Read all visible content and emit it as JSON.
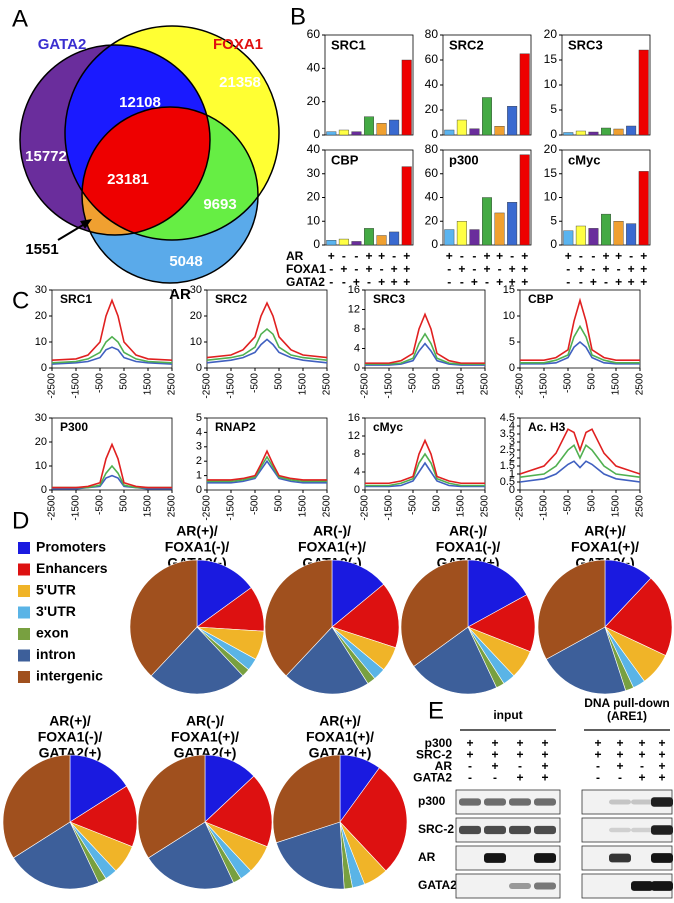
{
  "panel_a": {
    "letter": "A",
    "set_labels": [
      "GATA2",
      "FOXA1",
      "AR"
    ],
    "set_label_colors": [
      "#3a2fd0",
      "#e01010",
      "#000000"
    ],
    "regions": [
      {
        "count": 15772,
        "color": "#6a2d9c"
      },
      {
        "count": 21358,
        "color": "#ffff33"
      },
      {
        "count": 5048,
        "color": "#5aaaea"
      },
      {
        "count": 12108,
        "color": "#1a1aff"
      },
      {
        "count": 9693,
        "color": "#66ee44"
      },
      {
        "count": 23181,
        "color": "#ee0000"
      },
      {
        "count": 1551,
        "color": "#f0a030"
      }
    ]
  },
  "panel_b": {
    "letter": "B",
    "bar_colors": [
      "#5ab4f0",
      "#ffff44",
      "#6a2d9c",
      "#44aa44",
      "#f0a030",
      "#3a6ad0",
      "#ee0000"
    ],
    "charts": [
      {
        "title": "SRC1",
        "ylim": [
          0,
          60
        ],
        "yticks": [
          0,
          20,
          40,
          60
        ],
        "values": [
          2,
          3,
          2,
          11,
          7,
          9,
          45
        ]
      },
      {
        "title": "SRC2",
        "ylim": [
          0,
          80
        ],
        "yticks": [
          0,
          20,
          40,
          60,
          80
        ],
        "values": [
          4,
          12,
          5,
          30,
          7,
          23,
          65
        ]
      },
      {
        "title": "SRC3",
        "ylim": [
          0,
          20
        ],
        "yticks": [
          0,
          5,
          10,
          15,
          20
        ],
        "values": [
          0.5,
          0.8,
          0.6,
          1.4,
          1.2,
          1.8,
          17
        ]
      },
      {
        "title": "CBP",
        "ylim": [
          0,
          40
        ],
        "yticks": [
          0,
          10,
          20,
          30,
          40
        ],
        "values": [
          2,
          2.5,
          1.5,
          7,
          4,
          5.5,
          33
        ]
      },
      {
        "title": "p300",
        "ylim": [
          0,
          80
        ],
        "yticks": [
          0,
          20,
          40,
          60,
          80
        ],
        "values": [
          13,
          20,
          13,
          40,
          27,
          36,
          76
        ]
      },
      {
        "title": "cMyc",
        "ylim": [
          0,
          20
        ],
        "yticks": [
          0,
          5,
          10,
          15,
          20
        ],
        "values": [
          3,
          4,
          3.5,
          6.5,
          5,
          4.5,
          15.5
        ]
      }
    ],
    "conditions": [
      {
        "name": "AR",
        "signs": [
          "+",
          "-",
          "-",
          "+",
          "+",
          "-",
          "+"
        ]
      },
      {
        "name": "FOXA1",
        "signs": [
          "-",
          "+",
          "-",
          "+",
          "-",
          "+",
          "+"
        ]
      },
      {
        "name": "GATA2",
        "signs": [
          "-",
          "-",
          "+",
          "-",
          "+",
          "+",
          "+"
        ]
      }
    ]
  },
  "panel_c": {
    "letter": "C",
    "x": [
      -2500,
      -1500,
      -1000,
      -500,
      -250,
      0,
      250,
      500,
      1000,
      1500,
      2500
    ],
    "xlim": [
      -2500,
      2500
    ],
    "xticks": [
      -2500,
      -1500,
      -500,
      500,
      1500,
      2500
    ],
    "charts": [
      {
        "title": "SRC1",
        "ylim": [
          0,
          30
        ],
        "yticks": [
          0,
          10,
          20,
          30
        ],
        "series": [
          {
            "color": "#e02020",
            "values": [
              3,
              3.5,
              5,
              10,
              20,
              26,
              20,
              10,
              5,
              3.5,
              3
            ]
          },
          {
            "color": "#50b050",
            "values": [
              2,
              2.5,
              3.5,
              6,
              10,
              12,
              10,
              6,
              3.5,
              2.5,
              2
            ]
          },
          {
            "color": "#4060c0",
            "values": [
              1.5,
              2,
              2.5,
              4,
              7,
              8,
              7,
              4,
              2.5,
              2,
              1.5
            ]
          }
        ]
      },
      {
        "title": "SRC2",
        "ylim": [
          0,
          30
        ],
        "yticks": [
          0,
          10,
          20,
          30
        ],
        "series": [
          {
            "color": "#e02020",
            "values": [
              4,
              5,
              7,
              12,
              20,
              25,
              20,
              12,
              7,
              5,
              4
            ]
          },
          {
            "color": "#50b050",
            "values": [
              3,
              4,
              5,
              8,
              13,
              15,
              13,
              8,
              5,
              4,
              3
            ]
          },
          {
            "color": "#4060c0",
            "values": [
              2,
              3,
              4,
              6,
              9,
              11,
              9,
              6,
              4,
              3,
              2
            ]
          }
        ]
      },
      {
        "title": "SRC3",
        "ylim": [
          0,
          16
        ],
        "yticks": [
          0,
          4,
          8,
          12,
          16
        ],
        "series": [
          {
            "color": "#e02020",
            "values": [
              1,
              1,
              1.5,
              3,
              8,
              11,
              8,
              3,
              1.5,
              1,
              1
            ]
          },
          {
            "color": "#50b050",
            "values": [
              0.8,
              0.8,
              1,
              2,
              5,
              7,
              5,
              2,
              1,
              0.8,
              0.8
            ]
          },
          {
            "color": "#4060c0",
            "values": [
              0.6,
              0.6,
              0.8,
              1.5,
              3.5,
              5,
              3.5,
              1.5,
              0.8,
              0.6,
              0.6
            ]
          }
        ]
      },
      {
        "title": "CBP",
        "ylim": [
          0,
          15
        ],
        "yticks": [
          0,
          5,
          10,
          15
        ],
        "series": [
          {
            "color": "#e02020",
            "values": [
              1.5,
              1.5,
              2,
              3.5,
              9,
              13,
              9,
              3.5,
              2,
              1.5,
              1.5
            ]
          },
          {
            "color": "#50b050",
            "values": [
              1,
              1,
              1.5,
              2.5,
              6,
              8,
              6,
              2.5,
              1.5,
              1,
              1
            ]
          },
          {
            "color": "#4060c0",
            "values": [
              0.8,
              0.8,
              1,
              2,
              4,
              5,
              4,
              2,
              1,
              0.8,
              0.8
            ]
          }
        ]
      },
      {
        "title": "P300",
        "ylim": [
          0,
          30
        ],
        "yticks": [
          0,
          10,
          20,
          30
        ],
        "series": [
          {
            "color": "#e02020",
            "values": [
              1,
              1,
              1.5,
              3,
              13,
              19,
              13,
              3,
              1.5,
              1,
              1
            ]
          },
          {
            "color": "#50b050",
            "values": [
              1,
              1,
              1,
              2,
              7,
              10,
              7,
              2,
              1,
              1,
              1
            ]
          },
          {
            "color": "#4060c0",
            "values": [
              0.5,
              0.5,
              1,
              1.5,
              5,
              6,
              5,
              1.5,
              1,
              0.5,
              0.5
            ]
          }
        ]
      },
      {
        "title": "RNAP2",
        "ylim": [
          0,
          5
        ],
        "yticks": [
          0,
          1,
          2,
          3,
          4,
          5
        ],
        "series": [
          {
            "color": "#e02020",
            "values": [
              0.7,
              0.7,
              0.8,
              1,
              1.8,
              2.7,
              1.8,
              1,
              0.8,
              0.7,
              0.7
            ]
          },
          {
            "color": "#50b050",
            "values": [
              0.6,
              0.6,
              0.7,
              0.9,
              1.6,
              2.3,
              1.6,
              0.9,
              0.7,
              0.6,
              0.6
            ]
          },
          {
            "color": "#4060c0",
            "values": [
              0.5,
              0.5,
              0.6,
              0.8,
              1.4,
              2,
              1.4,
              0.8,
              0.6,
              0.5,
              0.5
            ]
          }
        ]
      },
      {
        "title": "cMyc",
        "ylim": [
          0,
          16
        ],
        "yticks": [
          0,
          4,
          8,
          12,
          16
        ],
        "series": [
          {
            "color": "#e02020",
            "values": [
              1.5,
              1.5,
              2,
              3,
              8,
              11,
              8,
              3,
              2,
              1.5,
              1.5
            ]
          },
          {
            "color": "#50b050",
            "values": [
              1,
              1,
              1.5,
              2.5,
              6,
              8,
              6,
              2.5,
              1.5,
              1,
              1
            ]
          },
          {
            "color": "#4060c0",
            "values": [
              0.8,
              0.8,
              1,
              2,
              4,
              6,
              4,
              2,
              1,
              0.8,
              0.8
            ]
          }
        ]
      },
      {
        "title": "Ac. H3",
        "ylim": [
          0,
          4.5
        ],
        "yticks": [
          0,
          0.5,
          1,
          1.5,
          2,
          2.5,
          3,
          3.5,
          4,
          4.5
        ],
        "series": [
          {
            "color": "#e02020",
            "values": [
              1,
              1.5,
              2.3,
              3.8,
              3.6,
              2.5,
              3.6,
              3.8,
              2.3,
              1.5,
              1
            ]
          },
          {
            "color": "#50b050",
            "values": [
              0.8,
              1,
              1.5,
              2.5,
              2.8,
              2,
              2.8,
              2.5,
              1.5,
              1,
              0.8
            ]
          },
          {
            "color": "#4060c0",
            "values": [
              0.5,
              0.7,
              1,
              1.6,
              1.8,
              1.4,
              1.8,
              1.6,
              1,
              0.7,
              0.5
            ]
          }
        ]
      }
    ]
  },
  "panel_d": {
    "letter": "D",
    "categories": [
      "Promoters",
      "Enhancers",
      "5'UTR",
      "3'UTR",
      "exon",
      "intron",
      "intergenic"
    ],
    "colors": [
      "#1a1ae0",
      "#dd1111",
      "#f0b428",
      "#5ab4e6",
      "#78a040",
      "#3d5f9a",
      "#a0501e"
    ],
    "pies": [
      {
        "title": [
          "AR(+)/",
          "FOXA1(-)/",
          "GATA2(-)"
        ],
        "values": [
          15,
          11,
          7,
          3,
          2,
          24,
          38
        ]
      },
      {
        "title": [
          "AR(-)/",
          "FOXA1(+)/",
          "GATA2(-)"
        ],
        "values": [
          14,
          16,
          6,
          3,
          2,
          21,
          38
        ]
      },
      {
        "title": [
          "AR(-)/",
          "FOXA1(-)/",
          "GATA2(+)"
        ],
        "values": [
          17,
          14,
          7,
          3,
          2,
          22,
          35
        ]
      },
      {
        "title": [
          "AR(+)/",
          "FOXA1(+)/",
          "GATA2(-)"
        ],
        "values": [
          12,
          20,
          8,
          3,
          2,
          22,
          33
        ]
      },
      {
        "title": [
          "AR(+)/",
          "FOXA1(-)/",
          "GATA2(+)"
        ],
        "values": [
          16,
          15,
          7,
          3,
          2,
          23,
          34
        ]
      },
      {
        "title": [
          "AR(-)/",
          "FOXA1(+)/",
          "GATA2(+)"
        ],
        "values": [
          13,
          18,
          7,
          3,
          2,
          23,
          34
        ]
      },
      {
        "title": [
          "AR(+)/",
          "FOXA1(+)/",
          "GATA2(+)"
        ],
        "values": [
          10,
          28,
          6,
          3,
          2,
          21,
          30
        ]
      }
    ]
  },
  "panel_e": {
    "letter": "E",
    "groups": [
      {
        "title": [
          "input"
        ]
      },
      {
        "title": [
          "DNA pull-down",
          "(ARE1)"
        ]
      }
    ],
    "conditions": [
      {
        "name": "p300",
        "signs": [
          [
            "+",
            "+",
            "+",
            "+"
          ],
          [
            "+",
            "+",
            "+",
            "+"
          ]
        ]
      },
      {
        "name": "SRC-2",
        "signs": [
          [
            "+",
            "+",
            "+",
            "+"
          ],
          [
            "+",
            "+",
            "+",
            "+"
          ]
        ]
      },
      {
        "name": "AR",
        "signs": [
          [
            "-",
            "+",
            "-",
            "+"
          ],
          [
            "-",
            "+",
            "-",
            "+"
          ]
        ]
      },
      {
        "name": "GATA2",
        "signs": [
          [
            "-",
            "-",
            "+",
            "+"
          ],
          [
            "-",
            "-",
            "+",
            "+"
          ]
        ]
      }
    ],
    "blots": [
      "p300",
      "SRC-2",
      "AR",
      "GATA2"
    ]
  }
}
